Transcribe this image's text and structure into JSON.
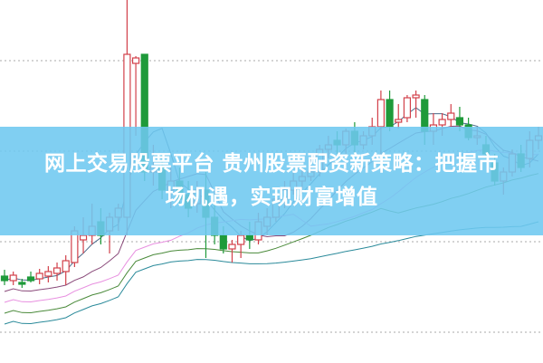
{
  "banner": {
    "line1": "网上交易股票平台 贵州股票配资新策略：把握市",
    "line2": "场机遇，实现财富增值"
  },
  "chart_data": {
    "type": "candlestick",
    "grid": "horizontal dotted",
    "colors": {
      "up": "#d2404a",
      "down": "#1f9a3a",
      "ma5": "#4a6a8a",
      "ma10": "#8a4a7a",
      "ma20": "#e890e0",
      "ma30": "#4a8a3a",
      "ma60": "#2a8a9a",
      "banner": "#6ec8f0"
    },
    "ohlc": [
      [
        95,
        102,
        85,
        90
      ],
      [
        90,
        100,
        85,
        96
      ],
      [
        88,
        92,
        82,
        86
      ],
      [
        94,
        100,
        88,
        90
      ],
      [
        92,
        103,
        86,
        98
      ],
      [
        95,
        106,
        88,
        100
      ],
      [
        98,
        110,
        90,
        104
      ],
      [
        100,
        118,
        85,
        112
      ],
      [
        110,
        150,
        105,
        145
      ],
      [
        135,
        160,
        120,
        140
      ],
      [
        140,
        175,
        130,
        150
      ],
      [
        155,
        170,
        130,
        140
      ],
      [
        145,
        165,
        120,
        160
      ],
      [
        160,
        175,
        145,
        170
      ],
      [
        160,
        400,
        140,
        340
      ],
      [
        330,
        338,
        250,
        336
      ],
      [
        340,
        340,
        200,
        210
      ],
      [
        210,
        240,
        195,
        215
      ],
      [
        215,
        230,
        180,
        190
      ],
      [
        190,
        215,
        170,
        200
      ],
      [
        200,
        215,
        175,
        180
      ],
      [
        185,
        200,
        160,
        170
      ],
      [
        175,
        200,
        165,
        190
      ],
      [
        190,
        210,
        115,
        160
      ],
      [
        160,
        180,
        130,
        140
      ],
      [
        140,
        150,
        120,
        125
      ],
      [
        125,
        135,
        110,
        130
      ],
      [
        130,
        145,
        115,
        140
      ],
      [
        140,
        155,
        125,
        135
      ],
      [
        135,
        165,
        130,
        155
      ],
      [
        150,
        170,
        140,
        160
      ],
      [
        160,
        185,
        155,
        180
      ],
      [
        180,
        200,
        170,
        190
      ],
      [
        190,
        210,
        185,
        200
      ],
      [
        200,
        215,
        190,
        205
      ],
      [
        205,
        230,
        200,
        210
      ],
      [
        210,
        240,
        205,
        235
      ],
      [
        235,
        250,
        225,
        240
      ],
      [
        245,
        255,
        230,
        240
      ],
      [
        240,
        258,
        230,
        255
      ],
      [
        255,
        265,
        230,
        240
      ],
      [
        240,
        255,
        235,
        250
      ],
      [
        250,
        270,
        240,
        260
      ],
      [
        260,
        300,
        210,
        290
      ],
      [
        290,
        300,
        255,
        260
      ],
      [
        265,
        285,
        258,
        268
      ],
      [
        270,
        295,
        265,
        292
      ],
      [
        292,
        300,
        270,
        295
      ],
      [
        290,
        295,
        240,
        255
      ],
      [
        255,
        275,
        240,
        262
      ],
      [
        262,
        275,
        250,
        268
      ],
      [
        268,
        285,
        260,
        275
      ],
      [
        270,
        282,
        255,
        262
      ],
      [
        262,
        270,
        245,
        248
      ],
      [
        250,
        260,
        240,
        250
      ],
      [
        240,
        250,
        225,
        230
      ],
      [
        220,
        230,
        195,
        200
      ],
      [
        200,
        215,
        185,
        210
      ],
      [
        210,
        235,
        205,
        230
      ],
      [
        230,
        240,
        210,
        215
      ],
      [
        225,
        255,
        215,
        245
      ],
      [
        245,
        260,
        235,
        250
      ]
    ],
    "ylim": [
      0,
      400
    ],
    "moving_averages": [
      5,
      10,
      20,
      30,
      60
    ]
  }
}
